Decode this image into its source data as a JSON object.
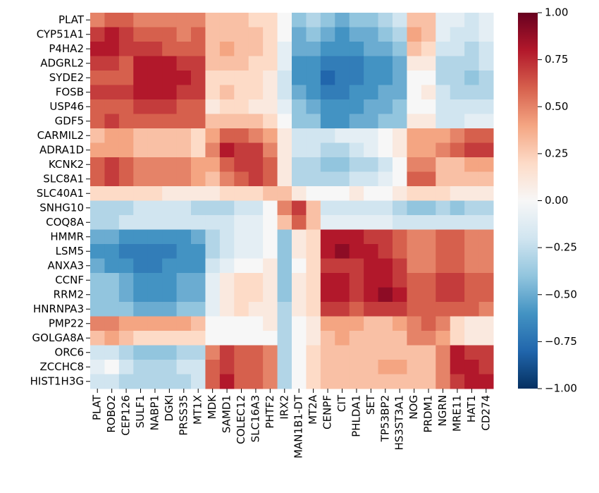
{
  "chart_data": {
    "type": "heatmap",
    "x": [
      "PLAT",
      "ROBO2",
      "CEP126",
      "SULF1",
      "NABP1",
      "DGKI",
      "PRSS35",
      "MT1X",
      "MDK",
      "SAMD1",
      "COLEC12",
      "SLC16A3",
      "PHTF2",
      "IRX2",
      "MAN1B1-DT",
      "MT2A",
      "CENPF",
      "CIT",
      "PHLDA1",
      "SET",
      "TP53BP2",
      "HS3ST3A1",
      "NOG",
      "PRDM1",
      "NGRN",
      "MRE11",
      "HAT1",
      "CD274"
    ],
    "y": [
      "PLAT",
      "CYP51A1",
      "P4HA2",
      "ADGRL2",
      "SYDE2",
      "FOSB",
      "USP46",
      "GDF5",
      "CARMIL2",
      "ADRA1D",
      "KCNK2",
      "SLC8A1",
      "SLC40A1",
      "SNHG10",
      "COQ8A",
      "HMMR",
      "LSM5",
      "ANXA3",
      "CCNF",
      "RRM2",
      "HNRNPA3",
      "PMP22",
      "GOLGA8A",
      "ORC6",
      "ZCCHC8",
      "HIST1H3G"
    ],
    "z": [
      [
        0.5,
        0.6,
        0.6,
        0.5,
        0.5,
        0.5,
        0.5,
        0.5,
        0.3,
        0.3,
        0.3,
        0.2,
        0.2,
        0.0,
        -0.4,
        -0.3,
        -0.4,
        -0.5,
        -0.4,
        -0.4,
        -0.3,
        -0.2,
        0.3,
        0.3,
        -0.1,
        -0.1,
        -0.2,
        -0.1
      ],
      [
        0.7,
        0.8,
        0.7,
        0.6,
        0.6,
        0.6,
        0.5,
        0.6,
        0.3,
        0.3,
        0.3,
        0.3,
        0.2,
        0.0,
        -0.5,
        -0.4,
        -0.5,
        -0.6,
        -0.5,
        -0.5,
        -0.4,
        -0.3,
        0.4,
        0.3,
        -0.1,
        -0.2,
        -0.2,
        -0.1
      ],
      [
        0.8,
        0.8,
        0.7,
        0.7,
        0.7,
        0.6,
        0.6,
        0.6,
        0.3,
        0.4,
        0.3,
        0.3,
        0.2,
        -0.1,
        -0.5,
        -0.5,
        -0.6,
        -0.6,
        -0.6,
        -0.5,
        -0.5,
        -0.4,
        0.3,
        0.2,
        -0.2,
        -0.2,
        -0.3,
        -0.2
      ],
      [
        0.7,
        0.7,
        0.6,
        0.8,
        0.8,
        0.8,
        0.7,
        0.7,
        0.3,
        0.3,
        0.3,
        0.2,
        0.2,
        -0.1,
        -0.6,
        -0.6,
        -0.7,
        -0.7,
        -0.7,
        -0.6,
        -0.6,
        -0.5,
        0.1,
        0.1,
        -0.3,
        -0.3,
        -0.3,
        -0.2
      ],
      [
        0.6,
        0.6,
        0.6,
        0.8,
        0.8,
        0.8,
        0.8,
        0.7,
        0.2,
        0.2,
        0.2,
        0.2,
        0.1,
        -0.2,
        -0.6,
        -0.6,
        -0.8,
        -0.7,
        -0.7,
        -0.6,
        -0.6,
        -0.5,
        0.0,
        0.0,
        -0.3,
        -0.3,
        -0.4,
        -0.3
      ],
      [
        0.7,
        0.7,
        0.7,
        0.8,
        0.8,
        0.8,
        0.7,
        0.7,
        0.2,
        0.3,
        0.2,
        0.2,
        0.1,
        -0.2,
        -0.5,
        -0.6,
        -0.7,
        -0.7,
        -0.6,
        -0.6,
        -0.5,
        -0.5,
        0.0,
        0.1,
        -0.2,
        -0.3,
        -0.3,
        -0.3
      ],
      [
        0.6,
        0.6,
        0.6,
        0.7,
        0.7,
        0.7,
        0.6,
        0.6,
        0.1,
        0.2,
        0.2,
        0.1,
        0.1,
        -0.1,
        -0.4,
        -0.5,
        -0.6,
        -0.6,
        -0.6,
        -0.5,
        -0.5,
        -0.4,
        0.0,
        0.0,
        -0.2,
        -0.2,
        -0.2,
        -0.2
      ],
      [
        0.6,
        0.7,
        0.6,
        0.6,
        0.6,
        0.6,
        0.6,
        0.6,
        0.3,
        0.3,
        0.3,
        0.3,
        0.2,
        0.0,
        -0.4,
        -0.4,
        -0.6,
        -0.6,
        -0.5,
        -0.5,
        -0.4,
        -0.4,
        0.1,
        0.1,
        -0.2,
        -0.2,
        -0.1,
        -0.1
      ],
      [
        0.3,
        0.4,
        0.4,
        0.3,
        0.3,
        0.3,
        0.3,
        0.2,
        0.4,
        0.6,
        0.6,
        0.5,
        0.4,
        0.1,
        -0.2,
        -0.2,
        -0.2,
        -0.1,
        -0.1,
        -0.1,
        0.0,
        0.1,
        0.4,
        0.4,
        0.4,
        0.5,
        0.6,
        0.6
      ],
      [
        0.4,
        0.4,
        0.4,
        0.3,
        0.3,
        0.3,
        0.3,
        0.2,
        0.5,
        0.8,
        0.7,
        0.7,
        0.5,
        0.1,
        -0.2,
        -0.2,
        -0.3,
        -0.3,
        -0.2,
        -0.1,
        0.0,
        0.1,
        0.4,
        0.4,
        0.5,
        0.6,
        0.7,
        0.7
      ],
      [
        0.6,
        0.7,
        0.6,
        0.5,
        0.5,
        0.5,
        0.5,
        0.4,
        0.4,
        0.6,
        0.7,
        0.7,
        0.6,
        0.1,
        -0.3,
        -0.3,
        -0.4,
        -0.4,
        -0.3,
        -0.3,
        -0.2,
        0.0,
        0.5,
        0.5,
        0.3,
        0.3,
        0.4,
        0.4
      ],
      [
        0.6,
        0.7,
        0.6,
        0.5,
        0.5,
        0.5,
        0.5,
        0.4,
        0.3,
        0.5,
        0.6,
        0.7,
        0.6,
        0.1,
        -0.3,
        -0.3,
        -0.3,
        -0.3,
        -0.2,
        -0.2,
        -0.1,
        0.0,
        0.6,
        0.6,
        0.3,
        0.3,
        0.3,
        0.3
      ],
      [
        0.2,
        0.2,
        0.2,
        0.2,
        0.2,
        0.1,
        0.1,
        0.1,
        0.1,
        0.2,
        0.2,
        0.2,
        0.3,
        0.3,
        0.1,
        0.0,
        0.0,
        0.0,
        0.1,
        0.0,
        0.0,
        0.1,
        0.2,
        0.2,
        0.2,
        0.1,
        0.1,
        0.1
      ],
      [
        -0.3,
        -0.3,
        -0.3,
        -0.2,
        -0.2,
        -0.2,
        -0.2,
        -0.3,
        -0.3,
        -0.3,
        -0.2,
        -0.2,
        0.0,
        0.5,
        0.7,
        0.3,
        -0.2,
        -0.2,
        -0.2,
        -0.2,
        -0.2,
        -0.3,
        -0.4,
        -0.4,
        -0.3,
        -0.4,
        -0.3,
        -0.3
      ],
      [
        -0.3,
        -0.3,
        -0.2,
        -0.2,
        -0.2,
        -0.2,
        -0.2,
        -0.2,
        -0.2,
        -0.2,
        -0.1,
        -0.1,
        0.0,
        0.3,
        0.6,
        0.3,
        -0.1,
        -0.1,
        -0.1,
        -0.1,
        -0.1,
        -0.2,
        -0.2,
        -0.2,
        -0.2,
        -0.2,
        -0.2,
        -0.2
      ],
      [
        -0.5,
        -0.5,
        -0.6,
        -0.6,
        -0.6,
        -0.6,
        -0.6,
        -0.5,
        -0.3,
        -0.2,
        -0.1,
        -0.1,
        0.0,
        -0.4,
        0.1,
        0.2,
        0.8,
        0.8,
        0.8,
        0.7,
        0.7,
        0.6,
        0.5,
        0.5,
        0.6,
        0.6,
        0.5,
        0.5
      ],
      [
        -0.6,
        -0.6,
        -0.7,
        -0.7,
        -0.7,
        -0.7,
        -0.6,
        -0.6,
        -0.3,
        -0.2,
        -0.1,
        -0.1,
        0.0,
        -0.4,
        0.1,
        0.2,
        0.8,
        0.9,
        0.8,
        0.8,
        0.7,
        0.6,
        0.5,
        0.5,
        0.6,
        0.6,
        0.5,
        0.5
      ],
      [
        -0.5,
        -0.6,
        -0.6,
        -0.7,
        -0.7,
        -0.6,
        -0.6,
        -0.6,
        -0.2,
        -0.1,
        0.0,
        0.0,
        0.1,
        -0.4,
        0.0,
        0.2,
        0.7,
        0.7,
        0.7,
        0.8,
        0.8,
        0.7,
        0.5,
        0.5,
        0.6,
        0.6,
        0.5,
        0.5
      ],
      [
        -0.4,
        -0.4,
        -0.5,
        -0.6,
        -0.6,
        -0.6,
        -0.5,
        -0.5,
        -0.1,
        0.1,
        0.2,
        0.2,
        0.1,
        -0.4,
        0.1,
        0.2,
        0.8,
        0.8,
        0.7,
        0.8,
        0.8,
        0.7,
        0.6,
        0.6,
        0.7,
        0.7,
        0.6,
        0.6
      ],
      [
        -0.4,
        -0.4,
        -0.5,
        -0.6,
        -0.6,
        -0.6,
        -0.5,
        -0.5,
        -0.1,
        0.1,
        0.2,
        0.2,
        0.1,
        -0.4,
        0.1,
        0.2,
        0.8,
        0.8,
        0.7,
        0.8,
        0.9,
        0.8,
        0.6,
        0.6,
        0.7,
        0.7,
        0.6,
        0.6
      ],
      [
        -0.4,
        -0.4,
        -0.4,
        -0.5,
        -0.5,
        -0.5,
        -0.4,
        -0.4,
        -0.1,
        0.1,
        0.2,
        0.1,
        0.1,
        -0.3,
        0.1,
        0.2,
        0.7,
        0.7,
        0.6,
        0.7,
        0.7,
        0.7,
        0.6,
        0.6,
        0.6,
        0.6,
        0.6,
        0.5
      ],
      [
        0.5,
        0.5,
        0.4,
        0.4,
        0.4,
        0.4,
        0.4,
        0.3,
        0.0,
        0.0,
        0.0,
        0.0,
        0.1,
        -0.3,
        0.0,
        0.1,
        0.4,
        0.4,
        0.4,
        0.3,
        0.3,
        0.4,
        0.5,
        0.6,
        0.5,
        0.2,
        0.1,
        0.1
      ],
      [
        0.3,
        0.4,
        0.3,
        0.2,
        0.2,
        0.2,
        0.2,
        0.2,
        0.0,
        0.0,
        0.0,
        0.0,
        0.0,
        -0.3,
        0.0,
        0.1,
        0.3,
        0.4,
        0.3,
        0.3,
        0.3,
        0.3,
        0.5,
        0.5,
        0.4,
        0.2,
        0.1,
        0.1
      ],
      [
        -0.2,
        -0.2,
        -0.3,
        -0.4,
        -0.4,
        -0.4,
        -0.3,
        -0.3,
        0.5,
        0.7,
        0.6,
        0.6,
        0.5,
        -0.3,
        0.0,
        0.2,
        0.3,
        0.3,
        0.3,
        0.3,
        0.3,
        0.3,
        0.3,
        0.3,
        0.5,
        0.8,
        0.7,
        0.7
      ],
      [
        -0.1,
        0.0,
        -0.2,
        -0.3,
        -0.3,
        -0.3,
        -0.2,
        -0.2,
        0.6,
        0.7,
        0.6,
        0.6,
        0.5,
        -0.3,
        0.0,
        0.2,
        0.3,
        0.3,
        0.3,
        0.3,
        0.4,
        0.4,
        0.3,
        0.3,
        0.5,
        0.8,
        0.8,
        0.7
      ],
      [
        -0.2,
        -0.2,
        -0.3,
        -0.3,
        -0.3,
        -0.3,
        -0.3,
        -0.2,
        0.6,
        0.8,
        0.6,
        0.6,
        0.5,
        -0.3,
        0.0,
        0.2,
        0.3,
        0.3,
        0.3,
        0.3,
        0.3,
        0.3,
        0.3,
        0.3,
        0.5,
        0.7,
        0.8,
        0.8
      ]
    ],
    "zlim": [
      -1,
      1
    ],
    "zticks": [
      {
        "value": 1,
        "label": "1.00"
      },
      {
        "value": 0.75,
        "label": "0.75"
      },
      {
        "value": 0.5,
        "label": "0.50"
      },
      {
        "value": 0.25,
        "label": "0.25"
      },
      {
        "value": 0,
        "label": "0.00"
      },
      {
        "value": -0.25,
        "label": "−0.25"
      },
      {
        "value": -0.5,
        "label": "−0.50"
      },
      {
        "value": -0.75,
        "label": "−0.75"
      },
      {
        "value": -1,
        "label": "−1.00"
      }
    ],
    "colorscale": [
      "#053061",
      "#2166ac",
      "#4393c3",
      "#92c5de",
      "#d1e5f0",
      "#f7f7f7",
      "#fddbc7",
      "#f4a582",
      "#d6604d",
      "#b2182b",
      "#67001f"
    ]
  }
}
